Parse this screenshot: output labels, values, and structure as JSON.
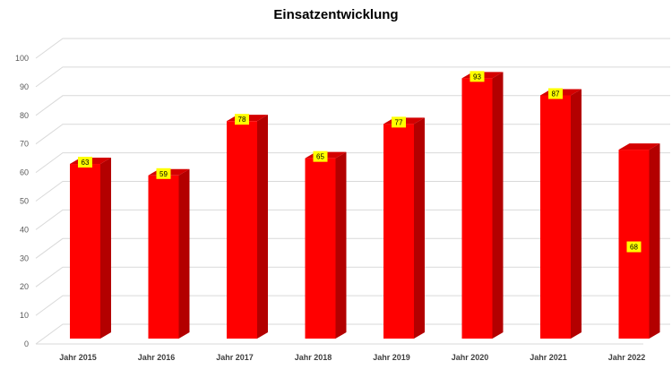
{
  "title": "Einsatzentwicklung",
  "colors": {
    "bar_front": "#ff0000",
    "bar_side": "#b30000",
    "bar_top": "#d40000",
    "data_label_bg": "#ffff00",
    "grid": "#d9d9d9",
    "axis_text": "#595959"
  },
  "chart_data": {
    "type": "bar",
    "style": "3d-column",
    "title": "Einsatzentwicklung",
    "categories": [
      "Jahr 2015",
      "Jahr 2016",
      "Jahr 2017",
      "Jahr 2018",
      "Jahr 2019",
      "Jahr 2020",
      "Jahr 2021",
      "Jahr 2022"
    ],
    "values": [
      63,
      59,
      78,
      65,
      77,
      93,
      87,
      68
    ],
    "ylim": [
      0,
      100
    ],
    "yticks": [
      0,
      10,
      20,
      30,
      40,
      50,
      60,
      70,
      80,
      90,
      100
    ],
    "grid": true,
    "legend": "none",
    "xlabel": "",
    "ylabel": ""
  }
}
